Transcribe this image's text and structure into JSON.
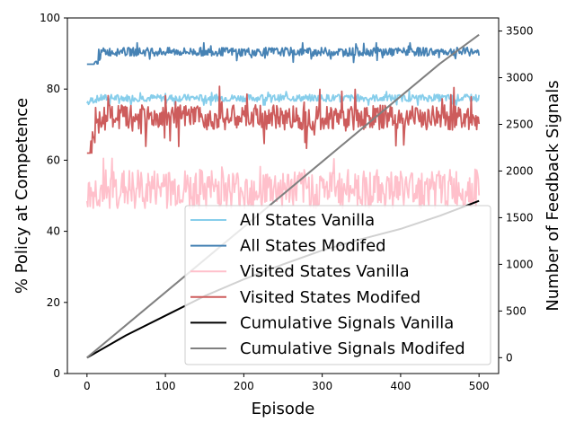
{
  "chart_data": {
    "type": "line",
    "title": "",
    "xlabel": "Episode",
    "ylabel": "% Policy at Competence",
    "ylabel_right": "Number of Feedback Signals",
    "xlim": [
      -25,
      525
    ],
    "ylim": [
      0,
      100
    ],
    "ylim_right": [
      -170,
      3640
    ],
    "x_ticks": [
      0,
      100,
      200,
      300,
      400,
      500
    ],
    "y_ticks": [
      0,
      20,
      40,
      60,
      80,
      100
    ],
    "y_ticks_right": [
      0,
      500,
      1000,
      1500,
      2000,
      2500,
      3000,
      3500
    ],
    "grid": false,
    "legend_position": "lower-right",
    "episodes": [
      0,
      500
    ],
    "series": [
      {
        "name": "All States Vanilla",
        "axis": "left",
        "color": "#87ceeb",
        "start": 76,
        "plateau": 77.5,
        "min": 75.5,
        "max": 79.5,
        "noise": 1.0
      },
      {
        "name": "All States Modifed",
        "axis": "left",
        "color": "#4682b4",
        "start": 77,
        "plateau": 90.5,
        "min": 87,
        "max": 93,
        "noise": 1.2
      },
      {
        "name": "Visited States Vanilla",
        "axis": "left",
        "color": "#ffc0cb",
        "start": 48.5,
        "plateau": 52,
        "min": 46.5,
        "max": 60.5,
        "noise": 5.5
      },
      {
        "name": "Visited States Modifed",
        "axis": "left",
        "color": "#cd5c5c",
        "start": 54,
        "plateau": 72,
        "min": 62,
        "max": 82,
        "noise": 3.5
      },
      {
        "name": "Cumulative Signals Vanilla",
        "axis": "right",
        "color": "#000000",
        "x": [
          0,
          50,
          100,
          150,
          200,
          250,
          300,
          350,
          400,
          450,
          500
        ],
        "values": [
          0,
          240,
          450,
          660,
          840,
          1000,
          1150,
          1270,
          1380,
          1520,
          1680
        ]
      },
      {
        "name": "Cumulative Signals Modifed",
        "axis": "right",
        "color": "#808080",
        "x": [
          0,
          50,
          100,
          150,
          200,
          250,
          300,
          350,
          400,
          450,
          500
        ],
        "values": [
          0,
          350,
          700,
          1050,
          1400,
          1750,
          2100,
          2450,
          2800,
          3150,
          3460
        ]
      }
    ]
  }
}
